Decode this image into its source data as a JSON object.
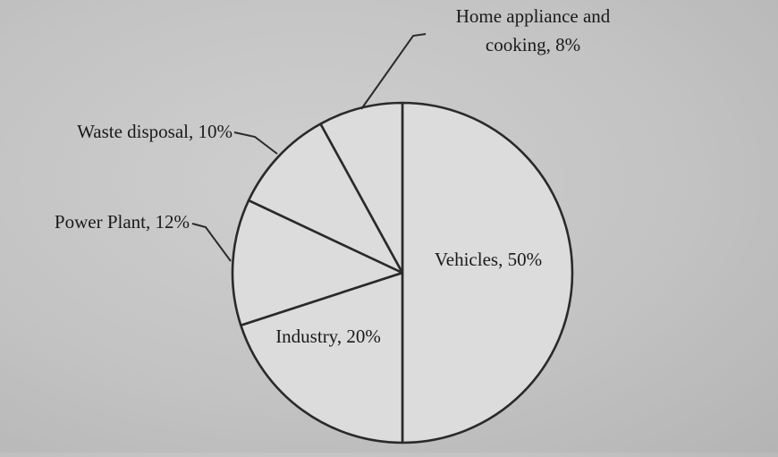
{
  "chart_data": {
    "type": "pie",
    "title": "",
    "slices": [
      {
        "label": "Vehicles, 50%",
        "value": 50
      },
      {
        "label": "Industry, 20%",
        "value": 20
      },
      {
        "label": "Power Plant, 12%",
        "value": 12
      },
      {
        "label": "Waste disposal, 10%",
        "value": 10
      },
      {
        "label": "Home appliance and cooking, 8%",
        "value": 8,
        "label_lines": [
          "Home appliance and",
          "cooking, 8%"
        ]
      }
    ],
    "start": "12 o'clock",
    "direction": "clockwise",
    "fill": "#dcdcdc",
    "stroke": "#2a2a2a"
  }
}
